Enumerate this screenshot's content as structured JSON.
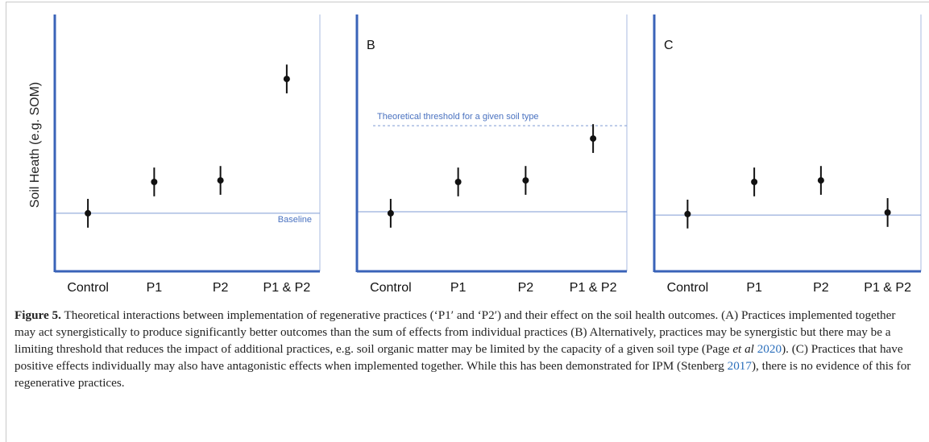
{
  "chart_data": [
    {
      "type": "errorbar",
      "y_label": "Soil Heath (e.g. SOM)",
      "categories": [
        "Control",
        "P1",
        "P2",
        "P1 & P2"
      ],
      "values": [
        2.26,
        3.48,
        3.54,
        7.49
      ],
      "errors": [
        0.56,
        0.56,
        0.56,
        0.56
      ],
      "color": "#111111",
      "ylim": [
        0,
        10
      ],
      "baseline": 2.26,
      "baseline_label": "Baseline",
      "line_color": "#7f9bd3"
    },
    {
      "type": "errorbar",
      "panel_label": "B",
      "categories": [
        "Control",
        "P1",
        "P2",
        "P1 & P2"
      ],
      "values": [
        2.26,
        3.48,
        3.54,
        5.17
      ],
      "errors": [
        0.56,
        0.56,
        0.56,
        0.56
      ],
      "color": "#111111",
      "ylim": [
        0,
        10
      ],
      "baseline": 2.32,
      "threshold": 5.67,
      "threshold_label": "Theoretical threshold for a given soil type",
      "line_color": "#7f9bd3"
    },
    {
      "type": "errorbar",
      "panel_label": "C",
      "categories": [
        "Control",
        "P1",
        "P2",
        "P1 & P2"
      ],
      "values": [
        2.23,
        3.48,
        3.54,
        2.29
      ],
      "errors": [
        0.56,
        0.56,
        0.56,
        0.56
      ],
      "color": "#111111",
      "ylim": [
        0,
        10
      ],
      "baseline": 2.19,
      "line_color": "#7f9bd3"
    }
  ],
  "caption": {
    "label": "Figure 5.",
    "parts": [
      {
        "text": " Theoretical interactions between implementation of regenerative practices (‘P1′ and ‘P2′) and their effect on the soil health outcomes. (A) Practices implemented together may act synergistically to produce significantly better outcomes than the sum of effects from individual practices (B) Alternatively, practices may be synergistic but there may be a limiting threshold that reduces the impact of additional practices, e.g. soil organic matter may be limited by the capacity of a given soil type (Page ",
        "style": "plain"
      },
      {
        "text": "et al",
        "style": "italic"
      },
      {
        "text": " ",
        "style": "plain"
      },
      {
        "text": "2020",
        "style": "link"
      },
      {
        "text": "). (C) Practices that have positive effects individually may also have antagonistic effects when implemented together. While this has been demonstrated for IPM (Stenberg ",
        "style": "plain"
      },
      {
        "text": "2017",
        "style": "link"
      },
      {
        "text": "), there is no evidence of this for regenerative practices.",
        "style": "plain"
      }
    ]
  }
}
